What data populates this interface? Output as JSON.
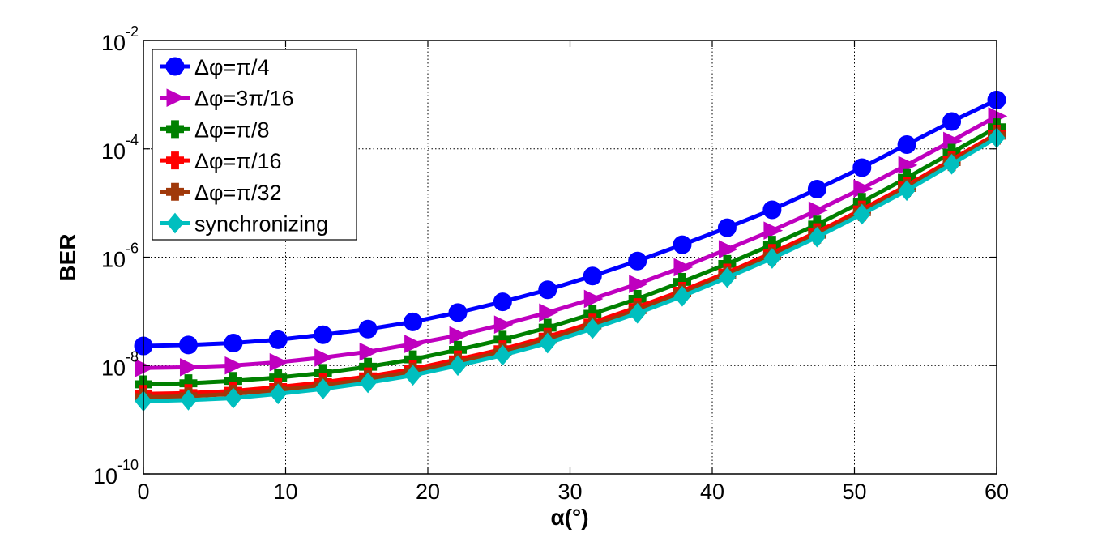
{
  "chart_data": {
    "type": "line",
    "xlabel": "α(°)",
    "ylabel": "BER",
    "xlim": [
      0,
      60
    ],
    "ylim_log10": [
      -10,
      -2
    ],
    "y_scale": "log",
    "grid": true,
    "legend_position": "top-left",
    "x_ticks": [
      {
        "label": "0",
        "value": 0
      },
      {
        "label": "10",
        "value": 10
      },
      {
        "label": "20",
        "value": 20
      },
      {
        "label": "30",
        "value": 30
      },
      {
        "label": "40",
        "value": 40
      },
      {
        "label": "50",
        "value": 50
      },
      {
        "label": "60",
        "value": 60
      }
    ],
    "y_ticks": [
      {
        "base": "10",
        "exp": "-10",
        "value": 1e-10
      },
      {
        "base": "10",
        "exp": "-8",
        "value": 1e-08
      },
      {
        "base": "10",
        "exp": "-6",
        "value": 1e-06
      },
      {
        "base": "10",
        "exp": "-4",
        "value": 0.0001
      },
      {
        "base": "10",
        "exp": "-2",
        "value": 0.01
      }
    ],
    "x": [
      0,
      3.16,
      6.32,
      9.47,
      12.63,
      15.79,
      18.95,
      22.11,
      25.26,
      28.42,
      31.58,
      34.74,
      37.89,
      41.05,
      44.21,
      47.37,
      50.53,
      53.68,
      56.84,
      60
    ],
    "series": [
      {
        "name": "Δφ=π/4",
        "color": "#0000ff",
        "marker": "circle",
        "values": [
          2.3e-08,
          2.4e-08,
          2.6e-08,
          3e-08,
          3.7e-08,
          4.7e-08,
          6.4e-08,
          9.5e-08,
          1.5e-07,
          2.5e-07,
          4.5e-07,
          8.5e-07,
          1.7e-06,
          3.5e-06,
          7.5e-06,
          1.8e-05,
          4.5e-05,
          0.00012,
          0.00032,
          0.0008
        ]
      },
      {
        "name": "Δφ=3π/16",
        "color": "#bf00bf",
        "marker": "triangle-right",
        "values": [
          9e-09,
          9.3e-09,
          1e-08,
          1.15e-08,
          1.4e-08,
          1.8e-08,
          2.5e-08,
          3.6e-08,
          5.7e-08,
          9.5e-08,
          1.7e-07,
          3.2e-07,
          6.5e-07,
          1.4e-06,
          3.1e-06,
          7.3e-06,
          1.85e-05,
          5e-05,
          0.00014,
          0.0004
        ]
      },
      {
        "name": "Δφ=π/8",
        "color": "#008000",
        "marker": "cross",
        "values": [
          4.5e-09,
          4.7e-09,
          5.2e-09,
          6e-09,
          7.3e-09,
          9.5e-09,
          1.3e-08,
          1.95e-08,
          3e-08,
          5e-08,
          9e-08,
          1.7e-07,
          3.5e-07,
          7.5e-07,
          1.7e-06,
          4e-06,
          1.05e-05,
          2.9e-05,
          8.5e-05,
          0.00025
        ]
      },
      {
        "name": "Δφ=π/16",
        "color": "#ff0000",
        "marker": "cross",
        "values": [
          3e-09,
          3.1e-09,
          3.4e-09,
          4e-09,
          4.9e-09,
          6.3e-09,
          8.6e-09,
          1.3e-08,
          2e-08,
          3.4e-08,
          6.2e-08,
          1.2e-07,
          2.4e-07,
          5.2e-07,
          1.2e-06,
          2.9e-06,
          7.6e-06,
          2.1e-05,
          6.3e-05,
          0.00019
        ]
      },
      {
        "name": "Δφ=π/32",
        "color": "#a0390a",
        "marker": "cross",
        "values": [
          2.6e-09,
          2.7e-09,
          3e-09,
          3.5e-09,
          4.3e-09,
          5.6e-09,
          7.7e-09,
          1.15e-08,
          1.8e-08,
          3e-08,
          5.5e-08,
          1.05e-07,
          2.15e-07,
          4.7e-07,
          1.05e-06,
          2.6e-06,
          6.8e-06,
          1.9e-05,
          5.7e-05,
          0.000175
        ]
      },
      {
        "name": "synchronizing",
        "color": "#00bfbf",
        "marker": "diamond",
        "values": [
          2.2e-09,
          2.3e-09,
          2.5e-09,
          3e-09,
          3.7e-09,
          4.8e-09,
          6.6e-09,
          1e-08,
          1.55e-08,
          2.6e-08,
          4.8e-08,
          9.2e-08,
          1.9e-07,
          4.2e-07,
          9.5e-07,
          2.35e-06,
          6.2e-06,
          1.7e-05,
          5.2e-05,
          0.00016
        ]
      }
    ]
  }
}
